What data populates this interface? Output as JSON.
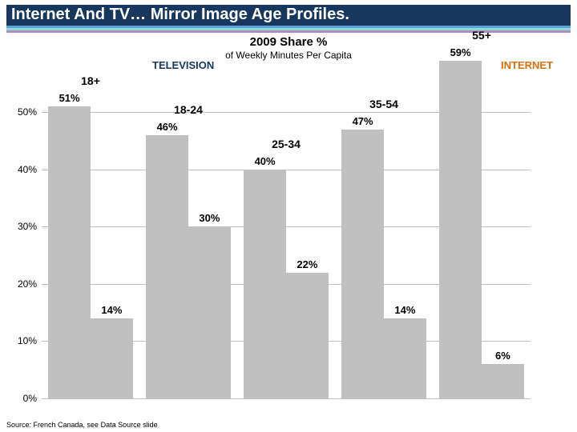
{
  "page_title": "Internet And TV… Mirror Image Age Profiles.",
  "heading": "2009 Share %",
  "subheading": "of Weekly Minutes Per Capita",
  "legend": {
    "left": "TELEVISION",
    "right": "INTERNET"
  },
  "chart": {
    "type": "bar",
    "ylim": [
      0,
      0.59
    ],
    "yticks": [
      0,
      0.1,
      0.2,
      0.3,
      0.4,
      0.5
    ],
    "ytick_labels": [
      "0%",
      "10%",
      "20%",
      "30%",
      "40%",
      "50%"
    ],
    "categories": [
      "18+",
      "18-24",
      "25-34",
      "35-54",
      "55+"
    ],
    "series_tv": [
      0.51,
      0.46,
      0.4,
      0.47,
      0.59
    ],
    "series_internet": [
      0.14,
      0.3,
      0.22,
      0.14,
      0.06
    ],
    "labels_tv": [
      "51%",
      "46%",
      "40%",
      "47%",
      "59%"
    ],
    "labels_internet": [
      "14%",
      "30%",
      "22%",
      "14%",
      "6%"
    ],
    "colors": {
      "tv_bar": "#c0c0c0",
      "internet_bar": "#c0c0c0",
      "grid": "#bfbfbf",
      "background": "#ffffff",
      "bar_label": "#000000",
      "cat_label": "#000000"
    },
    "font": {
      "bar_label_size": 13,
      "cat_label_size": 14,
      "ytick_size": 12
    }
  },
  "title_style": {
    "bg_color": "#17375e",
    "thin_stripe_1": "#5aa2d8",
    "thin_stripe_2": "#8fd9d0",
    "thin_stripe_3": "#b08bc4",
    "text_color": "#ffffff",
    "font_size": 20
  },
  "heading_style": {
    "color": "#000000",
    "font_size": 15,
    "sub_font_size": 12
  },
  "legend_style": {
    "tv_color": "#17375e",
    "internet_color": "#e36c0a",
    "font_size": 13
  },
  "source": "Source: French Canada, see Data Source slide",
  "source_style": {
    "font_size": 9,
    "color": "#000000"
  }
}
